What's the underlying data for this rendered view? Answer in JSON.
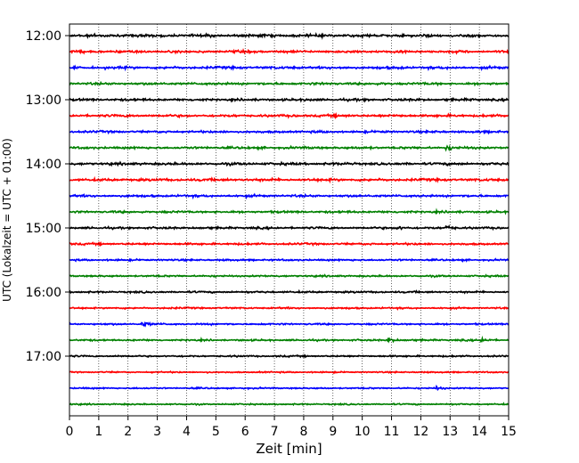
{
  "chart_data": {
    "type": "line",
    "subtype": "helicorder",
    "xlabel": "Zeit  [min]",
    "ylabel": "UTC (Lokalzeit = UTC + 01:00)",
    "xlim": [
      0,
      15
    ],
    "x_ticks": [
      0,
      1,
      2,
      3,
      4,
      5,
      6,
      7,
      8,
      9,
      10,
      11,
      12,
      13,
      14,
      15
    ],
    "x_tick_labels": [
      "0",
      "1",
      "2",
      "3",
      "4",
      "5",
      "6",
      "7",
      "8",
      "9",
      "10",
      "11",
      "12",
      "13",
      "14",
      "15"
    ],
    "x_grid": "dotted vertical lines at every minute",
    "y_tick_labels": [
      "12:00",
      "13:00",
      "14:00",
      "15:00",
      "16:00",
      "17:00"
    ],
    "trace_interval_minutes": 15,
    "trace_colors_cycle": [
      "#000000",
      "#ff0000",
      "#0000ff",
      "#008000"
    ],
    "trace_start_times": [
      "12:00",
      "12:15",
      "12:30",
      "12:45",
      "13:00",
      "13:15",
      "13:30",
      "13:45",
      "14:00",
      "14:15",
      "14:30",
      "14:45",
      "15:00",
      "15:15",
      "15:30",
      "15:45",
      "16:00",
      "16:15",
      "16:30",
      "16:45",
      "17:00",
      "17:15",
      "17:30",
      "17:45"
    ],
    "trace_relative_noise": [
      1.0,
      0.85,
      0.9,
      0.8,
      0.8,
      0.85,
      0.7,
      0.75,
      0.9,
      0.95,
      0.75,
      0.7,
      0.65,
      0.6,
      0.45,
      0.45,
      0.5,
      0.35,
      0.4,
      0.4,
      0.35,
      0.2,
      0.25,
      0.25
    ],
    "events": [
      {
        "trace": "13:45",
        "minute": 12.9
      },
      {
        "trace": "15:00",
        "minute": 11.2
      },
      {
        "trace": "15:00",
        "minute": 12.9
      },
      {
        "trace": "16:30",
        "minute": 2.5
      },
      {
        "trace": "16:45",
        "minute": 10.9
      },
      {
        "trace": "16:45",
        "minute": 14.1
      },
      {
        "trace": "17:30",
        "minute": 12.5
      }
    ]
  }
}
